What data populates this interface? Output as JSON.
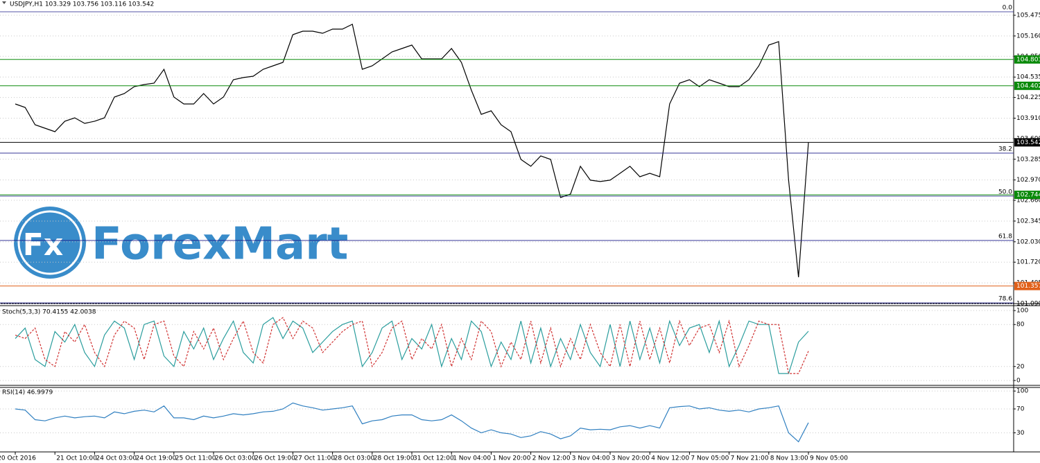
{
  "chart_data": [
    {
      "type": "line",
      "title": "USDJPY,H1  103.329 103.756 103.116 103.542",
      "categories": [
        "20 Oct 2016",
        null,
        null,
        null,
        "21 Oct 10:00",
        null,
        null,
        null,
        "24 Oct 03:00",
        null,
        null,
        null,
        "24 Oct 19:00",
        null,
        null,
        null,
        "25 Oct 11:00",
        null,
        null,
        null,
        "26 Oct 03:00",
        null,
        null,
        null,
        "26 Oct 19:00",
        null,
        null,
        null,
        "27 Oct 11:00",
        null,
        null,
        null,
        "28 Oct 03:00",
        null,
        null,
        null,
        "28 Oct 19:00",
        null,
        null,
        null,
        "31 Oct 12:00",
        null,
        null,
        null,
        "1 Nov 04:00",
        null,
        null,
        null,
        "1 Nov 20:00",
        null,
        null,
        null,
        "2 Nov 12:00",
        null,
        null,
        null,
        "3 Nov 04:00",
        null,
        null,
        null,
        "3 Nov 20:00",
        null,
        null,
        null,
        "4 Nov 12:00",
        null,
        null,
        null,
        "7 Nov 05:00",
        null,
        null,
        null,
        "7 Nov 21:00",
        null,
        null,
        null,
        "8 Nov 13:00",
        null,
        null,
        null,
        "9 Nov 05:00"
      ],
      "series": [
        {
          "color": "#000000",
          "values": [
            104.126,
            104.073,
            103.81,
            103.757,
            103.704,
            103.863,
            103.915,
            103.831,
            103.863,
            103.915,
            104.231,
            104.284,
            104.389,
            104.421,
            104.442,
            104.653,
            104.231,
            104.126,
            104.126,
            104.284,
            104.126,
            104.231,
            104.495,
            104.527,
            104.548,
            104.653,
            104.706,
            104.758,
            105.18,
            105.233,
            105.233,
            105.201,
            105.264,
            105.264,
            105.338,
            104.653,
            104.706,
            104.811,
            104.917,
            104.969,
            105.022,
            104.811,
            104.811,
            104.811,
            104.969,
            104.758,
            104.337,
            103.968,
            104.021,
            103.81,
            103.704,
            103.283,
            103.178,
            103.336,
            103.283,
            102.703,
            102.756,
            103.178,
            102.967,
            102.946,
            102.967,
            103.072,
            103.178,
            103.019,
            103.072,
            103.019,
            104.126,
            104.442,
            104.495,
            104.389,
            104.495,
            104.442,
            104.389,
            104.389,
            104.495,
            104.706,
            105.022,
            105.074,
            102.967,
            101.491,
            103.542
          ]
        }
      ],
      "ylim": [
        101.09,
        105.707
      ],
      "yticks": [
        105.475,
        {
          "value": 105.16,
          "label": "105.160"
        },
        {
          "value": 104.85,
          "label": "104.850"
        },
        104.535,
        104.225,
        {
          "value": 103.91,
          "label": "103.910"
        },
        {
          "value": 103.6,
          "label": "103.600"
        },
        103.285,
        {
          "value": 102.97,
          "label": "102.970"
        },
        {
          "value": 102.66,
          "label": "102.660"
        },
        102.345,
        {
          "value": 102.03,
          "label": "102.030"
        },
        {
          "value": 101.72,
          "label": "101.720"
        },
        101.405,
        {
          "value": 101.09,
          "label": "101.090"
        }
      ],
      "grid": true,
      "levels": [
        {
          "value": 104.803,
          "color": "#0a8a0a"
        },
        {
          "value": 104.402,
          "color": "#0a8a0a"
        },
        {
          "value": 103.542,
          "color": "#000000"
        },
        {
          "value": 102.744,
          "color": "#0a8a0a"
        },
        {
          "value": 101.357,
          "color": "#e0601a"
        }
      ],
      "fib_levels": [
        {
          "label": "0.0",
          "value": 105.528
        },
        {
          "label": "38.2",
          "value": 103.378
        },
        {
          "label": "50.0",
          "value": 102.724
        },
        {
          "label": "61.8",
          "value": 102.05
        },
        {
          "label": "78.6",
          "value": 101.1
        }
      ]
    },
    {
      "type": "line",
      "title": "Stoch(5,3,3) 70.4155 42.0038",
      "series": [
        {
          "color": "#2a9d9d",
          "style": "solid",
          "values": [
            60,
            75,
            30,
            20,
            70,
            55,
            80,
            40,
            20,
            65,
            85,
            75,
            30,
            80,
            85,
            35,
            20,
            70,
            45,
            75,
            30,
            60,
            85,
            40,
            25,
            80,
            90,
            60,
            85,
            75,
            40,
            55,
            70,
            80,
            85,
            20,
            40,
            75,
            85,
            30,
            60,
            45,
            80,
            20,
            60,
            30,
            85,
            70,
            20,
            55,
            30,
            85,
            25,
            75,
            20,
            60,
            30,
            80,
            40,
            20,
            80,
            20,
            85,
            30,
            75,
            25,
            85,
            50,
            75,
            80,
            40,
            85,
            20,
            50,
            85,
            80,
            80,
            10,
            10,
            55,
            70.4155
          ]
        },
        {
          "color": "#d03030",
          "style": "dashed",
          "values": [
            65,
            60,
            75,
            30,
            20,
            70,
            55,
            80,
            40,
            20,
            65,
            85,
            75,
            30,
            80,
            85,
            35,
            20,
            70,
            45,
            75,
            30,
            60,
            85,
            40,
            25,
            80,
            90,
            60,
            85,
            75,
            40,
            55,
            70,
            80,
            85,
            20,
            40,
            75,
            85,
            30,
            60,
            45,
            80,
            20,
            60,
            30,
            85,
            70,
            20,
            55,
            30,
            85,
            25,
            75,
            20,
            60,
            30,
            80,
            40,
            20,
            80,
            20,
            85,
            30,
            75,
            25,
            85,
            50,
            75,
            80,
            40,
            85,
            20,
            50,
            85,
            80,
            80,
            10,
            10,
            42.0038
          ]
        }
      ],
      "ylim": [
        -7,
        107
      ],
      "yticks": [
        0,
        20,
        80,
        100
      ],
      "grid": true
    },
    {
      "type": "line",
      "title": "RSI(14) 46.9979",
      "series": [
        {
          "color": "#2f7fc0",
          "style": "solid",
          "values": [
            70,
            68,
            52,
            50,
            55,
            58,
            55,
            57,
            58,
            55,
            65,
            62,
            66,
            68,
            65,
            75,
            55,
            55,
            52,
            58,
            55,
            58,
            62,
            60,
            62,
            65,
            66,
            70,
            80,
            75,
            72,
            68,
            70,
            72,
            75,
            45,
            50,
            52,
            58,
            60,
            60,
            52,
            50,
            52,
            60,
            50,
            38,
            30,
            35,
            30,
            28,
            22,
            25,
            32,
            28,
            20,
            25,
            38,
            35,
            36,
            35,
            40,
            42,
            38,
            42,
            38,
            72,
            74,
            75,
            70,
            72,
            68,
            66,
            68,
            65,
            70,
            72,
            75,
            30,
            15,
            46.9979
          ]
        }
      ],
      "ylim": [
        -2,
        106
      ],
      "yticks": [
        30,
        70,
        100
      ],
      "grid": true
    }
  ],
  "watermark": {
    "icon": "Fx",
    "text": "ForexMart"
  }
}
